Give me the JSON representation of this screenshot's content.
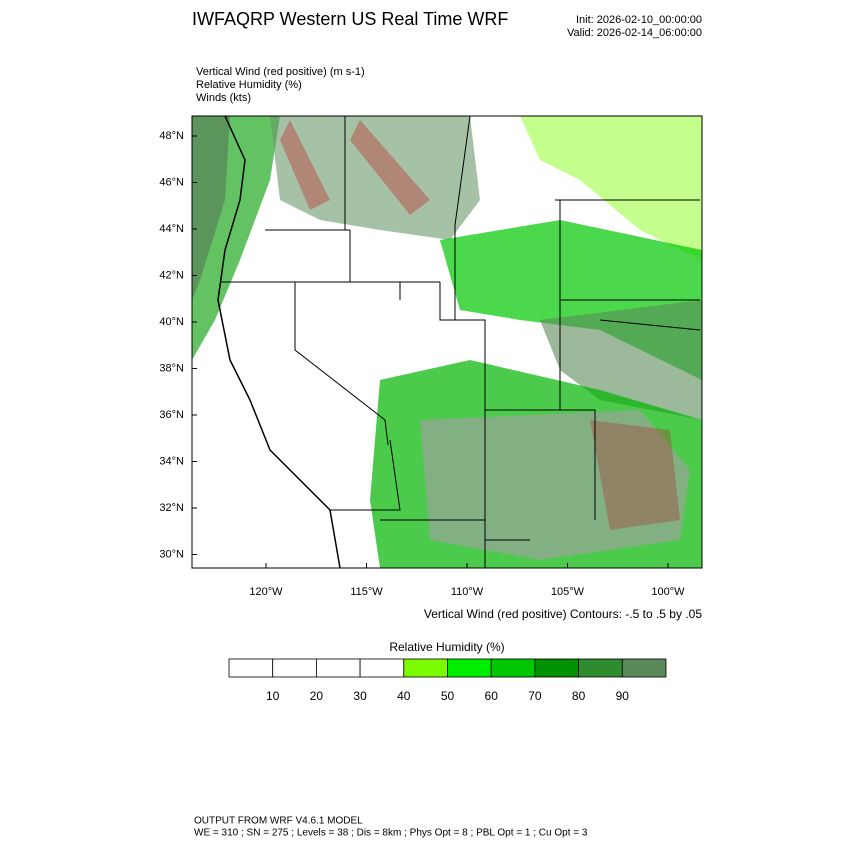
{
  "header": {
    "title": "IWFAQRP Western US Real Time WRF",
    "init": "Init: 2026-02-10_00:00:00",
    "valid": "Valid: 2026-02-14_06:00:00"
  },
  "fields": [
    "Vertical Wind (red positive)   (m s-1)",
    "Relative Humidity   (%)",
    "Winds   (kts)"
  ],
  "map": {
    "lat_labels": [
      "48°N",
      "46°N",
      "44°N",
      "42°N",
      "40°N",
      "38°N",
      "36°N",
      "34°N",
      "32°N",
      "30°N"
    ],
    "lon_labels": [
      "120°W",
      "115°W",
      "110°W",
      "105°W",
      "100°W"
    ],
    "contour_note": "Vertical Wind (red positive) Contours: -.5 to .5 by .05"
  },
  "colorbar": {
    "title": "Relative Humidity  (%)",
    "ticks": [
      10,
      20,
      30,
      40,
      50,
      60,
      70,
      80,
      90
    ],
    "colors": [
      "#ffffff",
      "#ffffff",
      "#ffffff",
      "#ffffff",
      "#7cfc00",
      "#00ee00",
      "#00c800",
      "#009100",
      "#2e8b2e",
      "#5a8a5a"
    ]
  },
  "footer": [
    "OUTPUT FROM WRF V4.6.1 MODEL",
    "WE = 310 ; SN = 275 ; Levels = 38 ; Dis = 8km ; Phys Opt = 8 ; PBL Opt = 1 ; Cu Opt = 3"
  ]
}
